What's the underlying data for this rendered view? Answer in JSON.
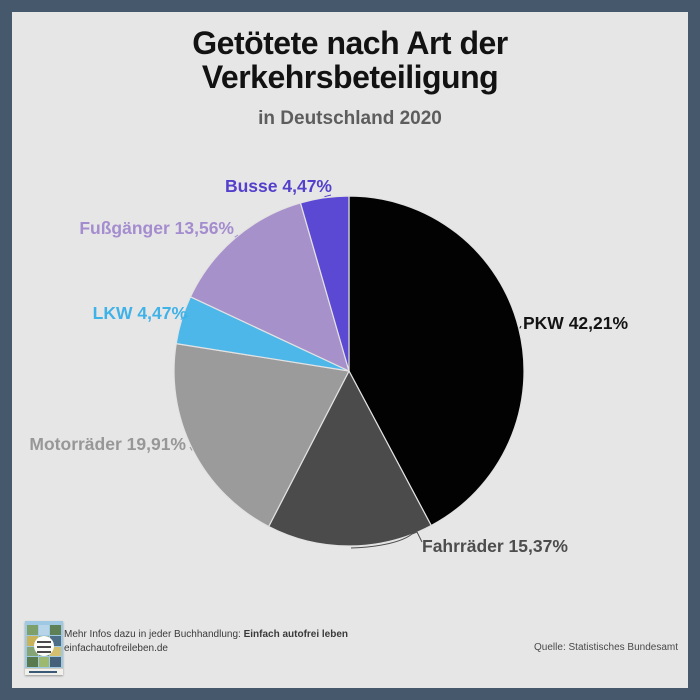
{
  "frame": {
    "border_color": "#46586b",
    "background_color": "#e7e6e7"
  },
  "header": {
    "title_line1": "Getötete nach Art der",
    "title_line2": "Verkehrsbeteiligung",
    "subtitle": "in Deutschland 2020"
  },
  "chart_data": {
    "type": "pie",
    "title": "Getötete nach Art der Verkehrsbeteiligung",
    "subtitle": "in Deutschland 2020",
    "unit": "percent",
    "start_angle_deg": 0,
    "direction": "clockwise",
    "legend_position": "labels-around-pie",
    "series": [
      {
        "label": "PKW",
        "value": 42.21,
        "display": "PKW 42,21%",
        "color": "#020202",
        "label_color": "#141414"
      },
      {
        "label": "Fahrräder",
        "value": 15.37,
        "display": "Fahrräder 15,37%",
        "color": "#4b4b4b",
        "label_color": "#4d4d4d"
      },
      {
        "label": "Motorräder",
        "value": 19.91,
        "display": "Motorräder 19,91%",
        "color": "#9b9b9b",
        "label_color": "#979797"
      },
      {
        "label": "LKW",
        "value": 4.47,
        "display": "LKW 4,47%",
        "color": "#4db7ea",
        "label_color": "#3fb2e8"
      },
      {
        "label": "Fußgänger",
        "value": 13.56,
        "display": "Fußgänger 13,56%",
        "color": "#a791cb",
        "label_color": "#a48dce"
      },
      {
        "label": "Busse",
        "value": 4.47,
        "display": "Busse 4,47%",
        "color": "#5b49d3",
        "label_color": "#5340cb"
      }
    ]
  },
  "footer": {
    "info_prefix": "Mehr Infos dazu in jeder Buchhandlung: ",
    "info_bold": "Einfach autofrei leben",
    "website": "einfachautofreileben.de",
    "source": "Quelle: Statistisches Bundesamt"
  }
}
